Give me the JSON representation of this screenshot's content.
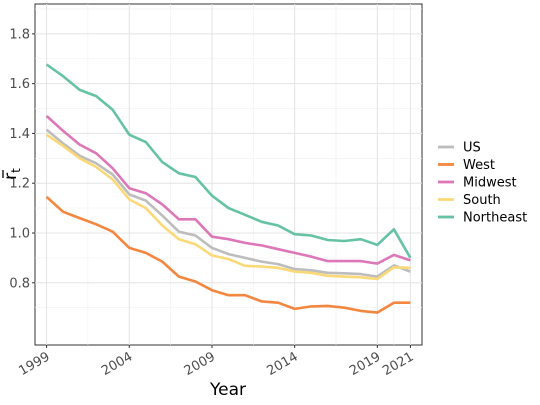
{
  "chart_data": {
    "type": "line",
    "title": "",
    "xlabel": "Year",
    "ylabel": "r̄t",
    "ylabel_base": "r",
    "ylabel_subscript": "t",
    "xlim": [
      1998.3,
      2021.7
    ],
    "ylim": [
      0.55,
      1.92
    ],
    "xticks": [
      1999,
      2004,
      2009,
      2014,
      2019,
      2021
    ],
    "yticks": [
      0.8,
      1.0,
      1.2,
      1.4,
      1.6,
      1.8
    ],
    "ytick_labels": [
      "0.8",
      "1.0",
      "1.2",
      "1.4",
      "1.6",
      "1.8"
    ],
    "grid": true,
    "legend_position": "right",
    "x": [
      1999,
      2000,
      2001,
      2002,
      2003,
      2004,
      2005,
      2006,
      2007,
      2008,
      2009,
      2010,
      2011,
      2012,
      2013,
      2014,
      2015,
      2016,
      2017,
      2018,
      2019,
      2020,
      2021
    ],
    "series": [
      {
        "name": "US",
        "color": "#bdbdbd",
        "values": [
          1.415,
          1.36,
          1.31,
          1.28,
          1.235,
          1.155,
          1.13,
          1.07,
          1.005,
          0.99,
          0.94,
          0.915,
          0.9,
          0.885,
          0.875,
          0.855,
          0.85,
          0.84,
          0.838,
          0.835,
          0.825,
          0.87,
          0.845
        ]
      },
      {
        "name": "West",
        "color": "#f4873f",
        "values": [
          1.145,
          1.085,
          1.06,
          1.035,
          1.005,
          0.94,
          0.92,
          0.885,
          0.825,
          0.805,
          0.77,
          0.75,
          0.75,
          0.725,
          0.72,
          0.695,
          0.705,
          0.707,
          0.7,
          0.687,
          0.68,
          0.72,
          0.72
        ]
      },
      {
        "name": "Midwest",
        "color": "#dd77b8",
        "values": [
          1.47,
          1.41,
          1.355,
          1.32,
          1.26,
          1.18,
          1.16,
          1.115,
          1.055,
          1.055,
          0.985,
          0.975,
          0.96,
          0.95,
          0.935,
          0.92,
          0.905,
          0.887,
          0.887,
          0.887,
          0.877,
          0.912,
          0.89
        ]
      },
      {
        "name": "South",
        "color": "#fbd977",
        "values": [
          1.395,
          1.35,
          1.3,
          1.265,
          1.215,
          1.135,
          1.1,
          1.03,
          0.975,
          0.955,
          0.91,
          0.895,
          0.868,
          0.865,
          0.86,
          0.845,
          0.84,
          0.828,
          0.825,
          0.822,
          0.815,
          0.862,
          0.86
        ]
      },
      {
        "name": "Northeast",
        "color": "#66c2a5",
        "values": [
          1.677,
          1.63,
          1.575,
          1.55,
          1.495,
          1.395,
          1.365,
          1.285,
          1.24,
          1.225,
          1.15,
          1.1,
          1.073,
          1.045,
          1.03,
          0.995,
          0.99,
          0.972,
          0.968,
          0.975,
          0.952,
          1.015,
          0.9
        ]
      }
    ]
  }
}
